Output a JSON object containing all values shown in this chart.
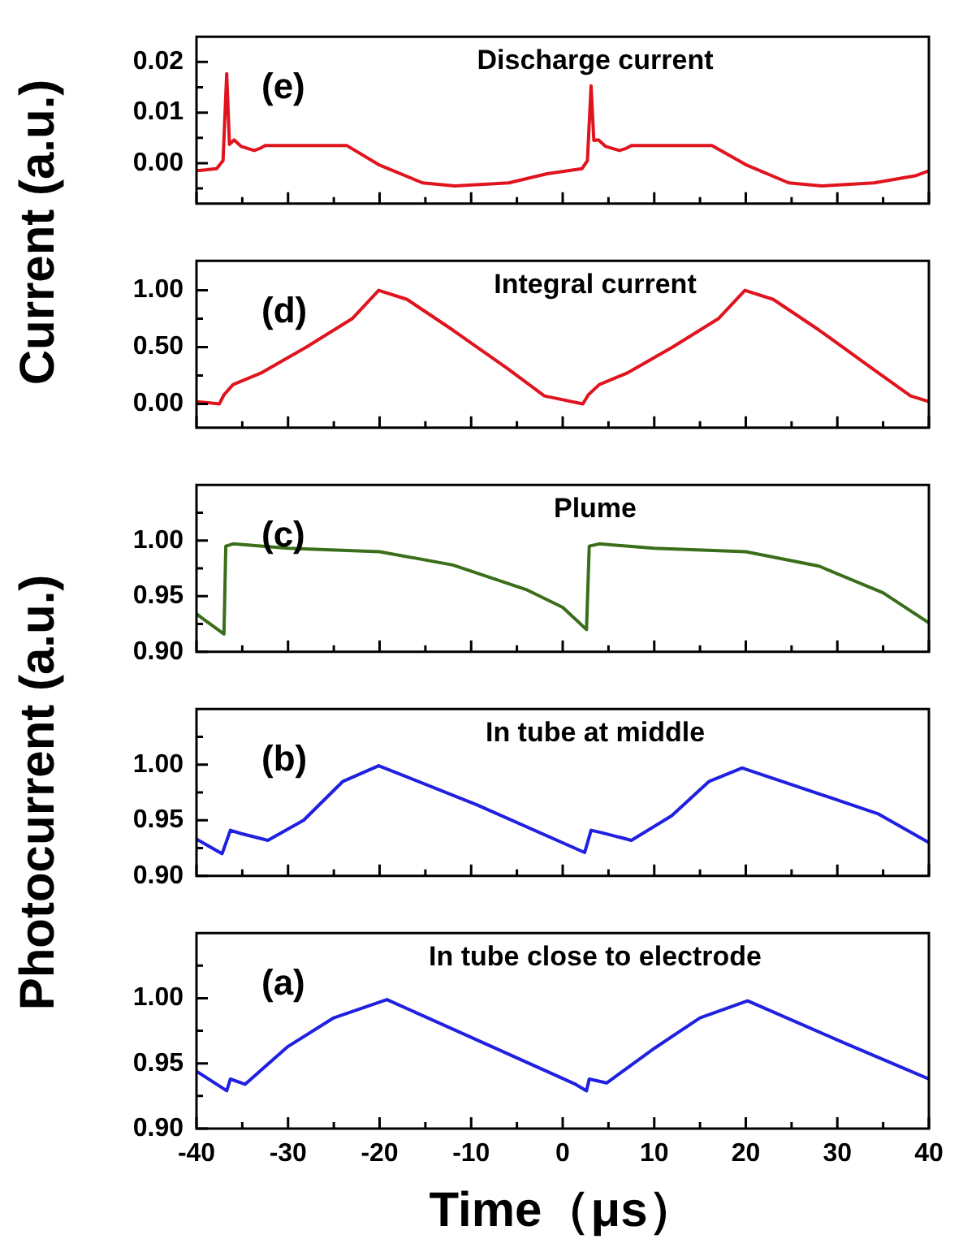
{
  "chart_data": [
    {
      "type": "line",
      "title": "Discharge current",
      "ylabel": "Current (a.u.)",
      "annotations": [
        "(e)"
      ],
      "tick_labels": "y",
      "legend": false,
      "marker": "none",
      "xlim": [
        -40,
        40
      ],
      "xticks": [
        -40,
        {
          "value": -35,
          "label": null
        },
        -30,
        {
          "value": -25,
          "label": null
        },
        -20,
        {
          "value": -15,
          "label": null
        },
        -10,
        {
          "value": -5,
          "label": null
        },
        0,
        {
          "value": 5,
          "label": null
        },
        10,
        {
          "value": 15,
          "label": null
        },
        20,
        {
          "value": 25,
          "label": null
        },
        30,
        {
          "value": 35,
          "label": null
        },
        40
      ],
      "ylim": [
        -0.008,
        0.025
      ],
      "yticks": [
        {
          "value": -0.005,
          "label": null
        },
        {
          "value": 0,
          "label": "0.00"
        },
        {
          "value": 0.005,
          "label": null
        },
        {
          "value": 0.01,
          "label": "0.01"
        },
        {
          "value": 0.015,
          "label": null
        },
        {
          "value": 0.02,
          "label": "0.02"
        }
      ],
      "series": [
        {
          "color": "#e0141e",
          "x": [
            -40,
            -37.8,
            -37.1,
            -36.7,
            -36.4,
            -35.9,
            -35.1,
            -33.7,
            -33.1,
            -32.5,
            -23.6,
            -20.1,
            -15.3,
            -11.8,
            -5.9,
            -1.7,
            2.1,
            2.7,
            3.1,
            3.4,
            3.9,
            4.7,
            6.2,
            6.9,
            7.5,
            16.3,
            20,
            24.7,
            28.3,
            34,
            38.5,
            40
          ],
          "values": [
            -0.0015,
            -0.0011,
            0.0005,
            0.0177,
            0.0037,
            0.0046,
            0.0033,
            0.0025,
            0.0029,
            0.0035,
            0.0035,
            -0.0003,
            -0.0039,
            -0.0045,
            -0.0039,
            -0.0021,
            -0.0011,
            0.0005,
            0.0153,
            0.0045,
            0.0046,
            0.0033,
            0.0025,
            0.0029,
            0.0035,
            0.0035,
            -0.0003,
            -0.0039,
            -0.0045,
            -0.0039,
            -0.0025,
            -0.0015
          ]
        }
      ]
    },
    {
      "type": "line",
      "title": "Integral current",
      "annotations": [
        "(d)"
      ],
      "tick_labels": "y",
      "marker": "none",
      "xlim": [
        -40,
        40
      ],
      "xticks": [
        -40,
        {
          "value": -35,
          "label": null
        },
        -30,
        {
          "value": -25,
          "label": null
        },
        -20,
        {
          "value": -15,
          "label": null
        },
        -10,
        {
          "value": -5,
          "label": null
        },
        0,
        {
          "value": 5,
          "label": null
        },
        10,
        {
          "value": 15,
          "label": null
        },
        20,
        {
          "value": 25,
          "label": null
        },
        30,
        {
          "value": 35,
          "label": null
        },
        40
      ],
      "ylim": [
        -0.21,
        1.26
      ],
      "yticks": [
        {
          "value": 0,
          "label": "0.00"
        },
        {
          "value": 0.25,
          "label": null
        },
        {
          "value": 0.5,
          "label": "0.50"
        },
        {
          "value": 0.75,
          "label": null
        },
        {
          "value": 1,
          "label": "1.00"
        }
      ],
      "series": [
        {
          "color": "#e0141e",
          "x": [
            -40,
            -37.5,
            -37,
            -36,
            -33,
            -28,
            -23,
            -20.1,
            -17,
            -12,
            -6,
            -2,
            2.2,
            2.8,
            4,
            7,
            12,
            17,
            19.9,
            23,
            28,
            34,
            38,
            40
          ],
          "values": [
            0.02,
            0,
            0.08,
            0.17,
            0.27,
            0.5,
            0.75,
            1,
            0.92,
            0.65,
            0.31,
            0.07,
            0,
            0.08,
            0.17,
            0.27,
            0.5,
            0.75,
            1,
            0.92,
            0.65,
            0.3,
            0.07,
            0.02
          ]
        }
      ]
    },
    {
      "type": "line",
      "title": "Plume",
      "ylabel": "Photocurrent (a.u.)",
      "annotations": [
        "(c)"
      ],
      "tick_labels": "y",
      "marker": "none",
      "xlim": [
        -40,
        40
      ],
      "xticks": [
        -40,
        {
          "value": -35,
          "label": null
        },
        -30,
        {
          "value": -25,
          "label": null
        },
        -20,
        {
          "value": -15,
          "label": null
        },
        -10,
        {
          "value": -5,
          "label": null
        },
        0,
        {
          "value": 5,
          "label": null
        },
        10,
        {
          "value": 15,
          "label": null
        },
        20,
        {
          "value": 25,
          "label": null
        },
        30,
        {
          "value": 35,
          "label": null
        },
        40
      ],
      "ylim": [
        0.9,
        1.05
      ],
      "yticks": [
        {
          "value": 0.9,
          "label": "0.90"
        },
        {
          "value": 0.925,
          "label": null
        },
        {
          "value": 0.95,
          "label": "0.95"
        },
        {
          "value": 0.975,
          "label": null
        },
        {
          "value": 1,
          "label": "1.00"
        },
        {
          "value": 1.025,
          "label": null
        }
      ],
      "series": [
        {
          "color": "#3a6e1a",
          "x": [
            -40,
            -37,
            -36.8,
            -36,
            -30,
            -20,
            -12,
            -4,
            0,
            2.6,
            2.9,
            4,
            10,
            20,
            28,
            35,
            40
          ],
          "values": [
            0.934,
            0.916,
            0.995,
            0.997,
            0.993,
            0.99,
            0.978,
            0.956,
            0.94,
            0.92,
            0.995,
            0.997,
            0.993,
            0.99,
            0.977,
            0.953,
            0.926
          ]
        }
      ]
    },
    {
      "type": "line",
      "title": "In tube at middle",
      "annotations": [
        "(b)"
      ],
      "tick_labels": "y",
      "marker": "none",
      "xlim": [
        -40,
        40
      ],
      "xticks": [
        -40,
        {
          "value": -35,
          "label": null
        },
        -30,
        {
          "value": -25,
          "label": null
        },
        -20,
        {
          "value": -15,
          "label": null
        },
        -10,
        {
          "value": -5,
          "label": null
        },
        0,
        {
          "value": 5,
          "label": null
        },
        10,
        {
          "value": 15,
          "label": null
        },
        20,
        {
          "value": 25,
          "label": null
        },
        30,
        {
          "value": 35,
          "label": null
        },
        40
      ],
      "ylim": [
        0.9,
        1.05
      ],
      "yticks": [
        {
          "value": 0.9,
          "label": "0.90"
        },
        {
          "value": 0.925,
          "label": null
        },
        {
          "value": 0.95,
          "label": "0.95"
        },
        {
          "value": 0.975,
          "label": null
        },
        {
          "value": 1,
          "label": "1.00"
        },
        {
          "value": 1.025,
          "label": null
        }
      ],
      "series": [
        {
          "color": "#2020e0",
          "x": [
            -40,
            -37.2,
            -36.3,
            -35.1,
            -32.2,
            -28.3,
            -24,
            -20.1,
            -9.4,
            2.4,
            3.1,
            4.2,
            7.5,
            11.9,
            16,
            19.6,
            34.4,
            40
          ],
          "values": [
            0.933,
            0.92,
            0.941,
            0.938,
            0.932,
            0.95,
            0.985,
            0.999,
            0.964,
            0.921,
            0.941,
            0.939,
            0.932,
            0.954,
            0.985,
            0.997,
            0.956,
            0.93
          ]
        }
      ]
    },
    {
      "type": "line",
      "title": "In tube close to electrode",
      "xlabel": "Time（μs）",
      "annotations": [
        "(a)"
      ],
      "marker": "none",
      "xlim": [
        -40,
        40
      ],
      "xticks": [
        -40,
        {
          "value": -35,
          "label": null
        },
        -30,
        {
          "value": -25,
          "label": null
        },
        -20,
        {
          "value": -15,
          "label": null
        },
        -10,
        {
          "value": -5,
          "label": null
        },
        0,
        {
          "value": 5,
          "label": null
        },
        10,
        {
          "value": 15,
          "label": null
        },
        20,
        {
          "value": 25,
          "label": null
        },
        30,
        {
          "value": 35,
          "label": null
        },
        40
      ],
      "ylim": [
        0.9,
        1.05
      ],
      "yticks": [
        {
          "value": 0.9,
          "label": "0.90"
        },
        {
          "value": 0.925,
          "label": null
        },
        {
          "value": 0.95,
          "label": "0.95"
        },
        {
          "value": 0.975,
          "label": null
        },
        {
          "value": 1,
          "label": "1.00"
        },
        {
          "value": 1.025,
          "label": null
        }
      ],
      "series": [
        {
          "color": "#2020e0",
          "x": [
            -40,
            -36.7,
            -36.3,
            -34.7,
            -30,
            -25,
            -19.2,
            -10,
            1.4,
            2.6,
            2.9,
            4.8,
            10.1,
            15,
            20.2,
            30,
            40
          ],
          "values": [
            0.944,
            0.929,
            0.938,
            0.934,
            0.963,
            0.985,
            0.999,
            0.97,
            0.934,
            0.929,
            0.938,
            0.935,
            0.962,
            0.985,
            0.998,
            0.968,
            0.938
          ]
        }
      ]
    }
  ]
}
